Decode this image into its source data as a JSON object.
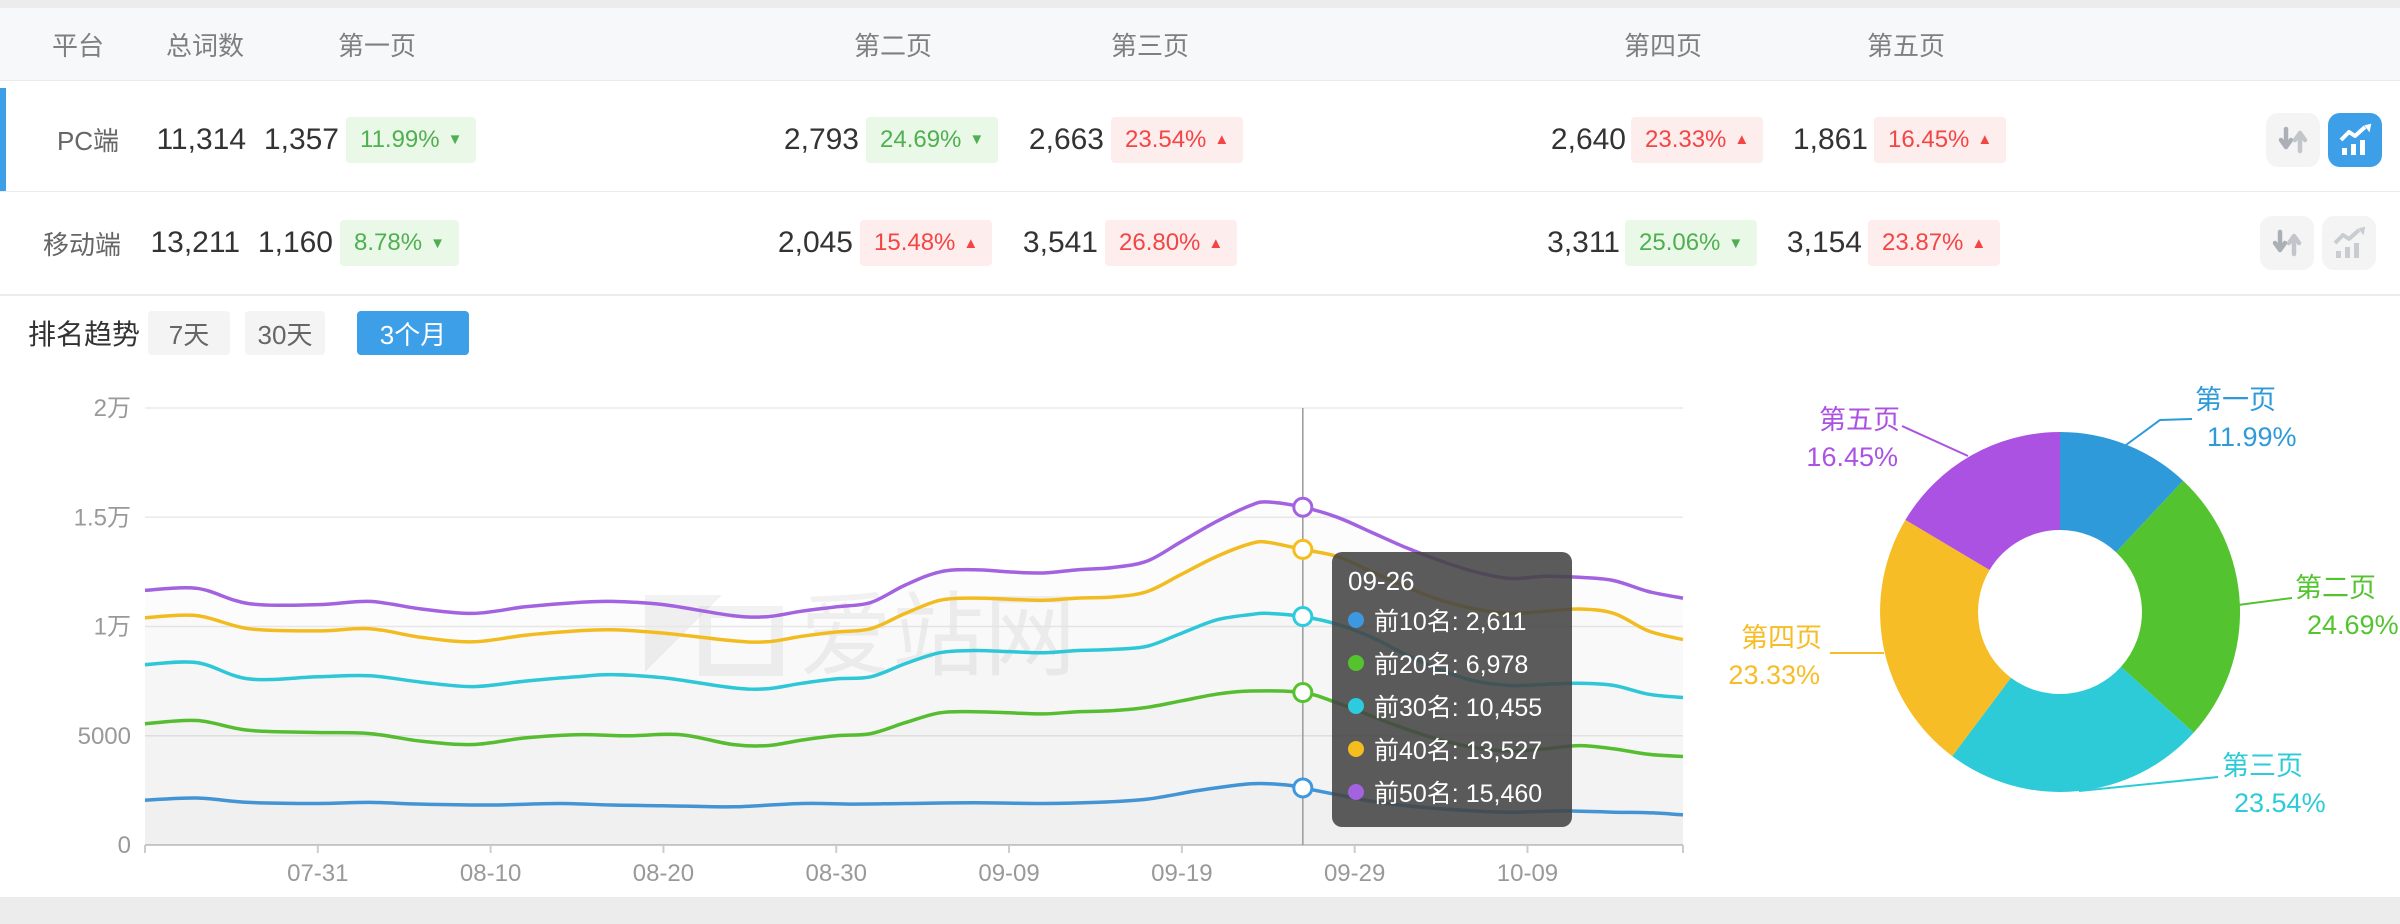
{
  "table": {
    "headers": [
      "平台",
      "总词数",
      "第一页",
      "第二页",
      "第三页",
      "第四页",
      "第五页"
    ],
    "rows": [
      {
        "platform": "PC端",
        "selected": true,
        "total": "11,314",
        "chart_active": true,
        "pages": [
          {
            "count": "1,357",
            "pct": "11.99%",
            "trend": "down"
          },
          {
            "count": "2,793",
            "pct": "24.69%",
            "trend": "down"
          },
          {
            "count": "2,663",
            "pct": "23.54%",
            "trend": "up"
          },
          {
            "count": "2,640",
            "pct": "23.33%",
            "trend": "up"
          },
          {
            "count": "1,861",
            "pct": "16.45%",
            "trend": "up"
          }
        ]
      },
      {
        "platform": "移动端",
        "selected": false,
        "total": "13,211",
        "chart_active": false,
        "pages": [
          {
            "count": "1,160",
            "pct": "8.78%",
            "trend": "down"
          },
          {
            "count": "2,045",
            "pct": "15.48%",
            "trend": "up"
          },
          {
            "count": "3,541",
            "pct": "26.80%",
            "trend": "up"
          },
          {
            "count": "3,311",
            "pct": "25.06%",
            "trend": "down"
          },
          {
            "count": "3,154",
            "pct": "23.87%",
            "trend": "up"
          }
        ]
      }
    ],
    "arrow_up": "▲",
    "arrow_down": "▼"
  },
  "trend": {
    "title": "排名趋势",
    "tabs": [
      "7天",
      "30天",
      "3个月"
    ],
    "active_tab": "3个月"
  },
  "watermark": "爱站网",
  "tooltip": {
    "title": "09-26",
    "items": [
      {
        "label": "前10名",
        "value": "2,611"
      },
      {
        "label": "前20名",
        "value": "6,978"
      },
      {
        "label": "前30名",
        "value": "10,455"
      },
      {
        "label": "前40名",
        "value": "13,527"
      },
      {
        "label": "前50名",
        "value": "15,460"
      }
    ]
  },
  "chart_data": [
    {
      "type": "line",
      "title": "排名趋势 3个月",
      "x_axis": {
        "labels": [
          "07-31",
          "08-10",
          "08-20",
          "08-30",
          "09-09",
          "09-19",
          "09-29",
          "10-09"
        ],
        "label_days": [
          10,
          20,
          30,
          40,
          50,
          60,
          70,
          80
        ],
        "day_span": [
          0,
          89
        ]
      },
      "y_axis": {
        "labels": [
          "0",
          "5000",
          "1万",
          "1.5万",
          "2万"
        ],
        "values": [
          0,
          5000,
          10000,
          15000,
          20000
        ],
        "max": 20000
      },
      "grid": true,
      "crosshair": {
        "date": "09-26",
        "day": 67
      },
      "series": [
        {
          "name": "前10名",
          "color": "#3e98e0",
          "points": [
            [
              0,
              2050
            ],
            [
              3,
              2150
            ],
            [
              6,
              1950
            ],
            [
              10,
              1900
            ],
            [
              13,
              1950
            ],
            [
              16,
              1870
            ],
            [
              20,
              1830
            ],
            [
              24,
              1900
            ],
            [
              27,
              1830
            ],
            [
              30,
              1800
            ],
            [
              34,
              1750
            ],
            [
              38,
              1900
            ],
            [
              41,
              1870
            ],
            [
              44,
              1900
            ],
            [
              48,
              1930
            ],
            [
              52,
              1900
            ],
            [
              55,
              1950
            ],
            [
              58,
              2100
            ],
            [
              61,
              2500
            ],
            [
              64,
              2800
            ],
            [
              66,
              2750
            ],
            [
              67,
              2611
            ],
            [
              69,
              2300
            ],
            [
              71,
              2000
            ],
            [
              73,
              1800
            ],
            [
              76,
              1600
            ],
            [
              79,
              1500
            ],
            [
              82,
              1560
            ],
            [
              85,
              1500
            ],
            [
              87,
              1480
            ],
            [
              89,
              1380
            ]
          ]
        },
        {
          "name": "前20名",
          "color": "#55c32e",
          "points": [
            [
              0,
              5550
            ],
            [
              3,
              5700
            ],
            [
              6,
              5250
            ],
            [
              10,
              5150
            ],
            [
              13,
              5100
            ],
            [
              16,
              4750
            ],
            [
              19,
              4600
            ],
            [
              22,
              4900
            ],
            [
              25,
              5050
            ],
            [
              28,
              5000
            ],
            [
              31,
              5050
            ],
            [
              34,
              4600
            ],
            [
              36,
              4550
            ],
            [
              38,
              4800
            ],
            [
              40,
              5000
            ],
            [
              42,
              5100
            ],
            [
              44,
              5600
            ],
            [
              46,
              6050
            ],
            [
              48,
              6100
            ],
            [
              50,
              6050
            ],
            [
              52,
              6000
            ],
            [
              54,
              6100
            ],
            [
              56,
              6150
            ],
            [
              58,
              6300
            ],
            [
              60,
              6600
            ],
            [
              62,
              6900
            ],
            [
              64,
              7050
            ],
            [
              67,
              6978
            ],
            [
              69,
              6500
            ],
            [
              71,
              5900
            ],
            [
              73,
              5300
            ],
            [
              75,
              4800
            ],
            [
              77,
              4450
            ],
            [
              79,
              4300
            ],
            [
              81,
              4400
            ],
            [
              83,
              4550
            ],
            [
              85,
              4400
            ],
            [
              87,
              4150
            ],
            [
              89,
              4050
            ]
          ]
        },
        {
          "name": "前30名",
          "color": "#2ccbde",
          "points": [
            [
              0,
              8250
            ],
            [
              3,
              8350
            ],
            [
              6,
              7600
            ],
            [
              10,
              7700
            ],
            [
              13,
              7750
            ],
            [
              16,
              7450
            ],
            [
              19,
              7250
            ],
            [
              22,
              7500
            ],
            [
              25,
              7700
            ],
            [
              27,
              7800
            ],
            [
              30,
              7650
            ],
            [
              34,
              7200
            ],
            [
              36,
              7150
            ],
            [
              38,
              7400
            ],
            [
              40,
              7600
            ],
            [
              42,
              7700
            ],
            [
              44,
              8300
            ],
            [
              46,
              8800
            ],
            [
              48,
              8900
            ],
            [
              50,
              8850
            ],
            [
              52,
              8800
            ],
            [
              54,
              8900
            ],
            [
              56,
              8950
            ],
            [
              58,
              9100
            ],
            [
              60,
              9700
            ],
            [
              62,
              10300
            ],
            [
              64,
              10550
            ],
            [
              65,
              10600
            ],
            [
              67,
              10455
            ],
            [
              69,
              10100
            ],
            [
              71,
              9500
            ],
            [
              73,
              8700
            ],
            [
              75,
              8000
            ],
            [
              77,
              7500
            ],
            [
              79,
              7300
            ],
            [
              81,
              7350
            ],
            [
              83,
              7400
            ],
            [
              85,
              7300
            ],
            [
              87,
              6900
            ],
            [
              89,
              6750
            ]
          ]
        },
        {
          "name": "前40名",
          "color": "#f5be1e",
          "points": [
            [
              0,
              10400
            ],
            [
              3,
              10500
            ],
            [
              6,
              9900
            ],
            [
              10,
              9800
            ],
            [
              13,
              9900
            ],
            [
              16,
              9500
            ],
            [
              19,
              9300
            ],
            [
              22,
              9600
            ],
            [
              25,
              9800
            ],
            [
              27,
              9850
            ],
            [
              30,
              9700
            ],
            [
              34,
              9350
            ],
            [
              36,
              9300
            ],
            [
              38,
              9550
            ],
            [
              40,
              9750
            ],
            [
              42,
              9900
            ],
            [
              44,
              10600
            ],
            [
              46,
              11200
            ],
            [
              48,
              11300
            ],
            [
              50,
              11250
            ],
            [
              52,
              11200
            ],
            [
              54,
              11300
            ],
            [
              56,
              11350
            ],
            [
              58,
              11600
            ],
            [
              60,
              12400
            ],
            [
              62,
              13200
            ],
            [
              64,
              13800
            ],
            [
              65,
              13850
            ],
            [
              67,
              13527
            ],
            [
              69,
              13200
            ],
            [
              71,
              12500
            ],
            [
              73,
              11800
            ],
            [
              75,
              11200
            ],
            [
              77,
              10800
            ],
            [
              79,
              10600
            ],
            [
              81,
              10700
            ],
            [
              83,
              10800
            ],
            [
              85,
              10600
            ],
            [
              87,
              9800
            ],
            [
              89,
              9400
            ]
          ]
        },
        {
          "name": "前50名",
          "color": "#a362e0",
          "points": [
            [
              0,
              11650
            ],
            [
              3,
              11750
            ],
            [
              6,
              11050
            ],
            [
              10,
              11000
            ],
            [
              13,
              11150
            ],
            [
              16,
              10800
            ],
            [
              19,
              10600
            ],
            [
              22,
              10900
            ],
            [
              25,
              11100
            ],
            [
              27,
              11150
            ],
            [
              30,
              11000
            ],
            [
              34,
              10500
            ],
            [
              36,
              10450
            ],
            [
              38,
              10700
            ],
            [
              40,
              10900
            ],
            [
              42,
              11100
            ],
            [
              44,
              11900
            ],
            [
              46,
              12500
            ],
            [
              48,
              12600
            ],
            [
              50,
              12500
            ],
            [
              52,
              12450
            ],
            [
              54,
              12600
            ],
            [
              56,
              12700
            ],
            [
              58,
              13000
            ],
            [
              60,
              13900
            ],
            [
              62,
              14800
            ],
            [
              64,
              15550
            ],
            [
              65,
              15700
            ],
            [
              67,
              15460
            ],
            [
              69,
              15000
            ],
            [
              71,
              14300
            ],
            [
              73,
              13600
            ],
            [
              75,
              13000
            ],
            [
              77,
              12500
            ],
            [
              79,
              12200
            ],
            [
              81,
              12300
            ],
            [
              83,
              12250
            ],
            [
              85,
              12100
            ],
            [
              87,
              11600
            ],
            [
              89,
              11300
            ]
          ]
        }
      ]
    },
    {
      "type": "pie",
      "donut": true,
      "slices": [
        {
          "label": "第一页",
          "value": 11.99,
          "display": "11.99%",
          "color": "#2e9ad9"
        },
        {
          "label": "第二页",
          "value": 24.69,
          "display": "24.69%",
          "color": "#53c42f"
        },
        {
          "label": "第三页",
          "value": 23.54,
          "display": "23.54%",
          "color": "#2dcbd8"
        },
        {
          "label": "第四页",
          "value": 23.33,
          "display": "23.33%",
          "color": "#f7bd26"
        },
        {
          "label": "第五页",
          "value": 16.45,
          "display": "16.45%",
          "color": "#ac52e2"
        }
      ]
    }
  ]
}
